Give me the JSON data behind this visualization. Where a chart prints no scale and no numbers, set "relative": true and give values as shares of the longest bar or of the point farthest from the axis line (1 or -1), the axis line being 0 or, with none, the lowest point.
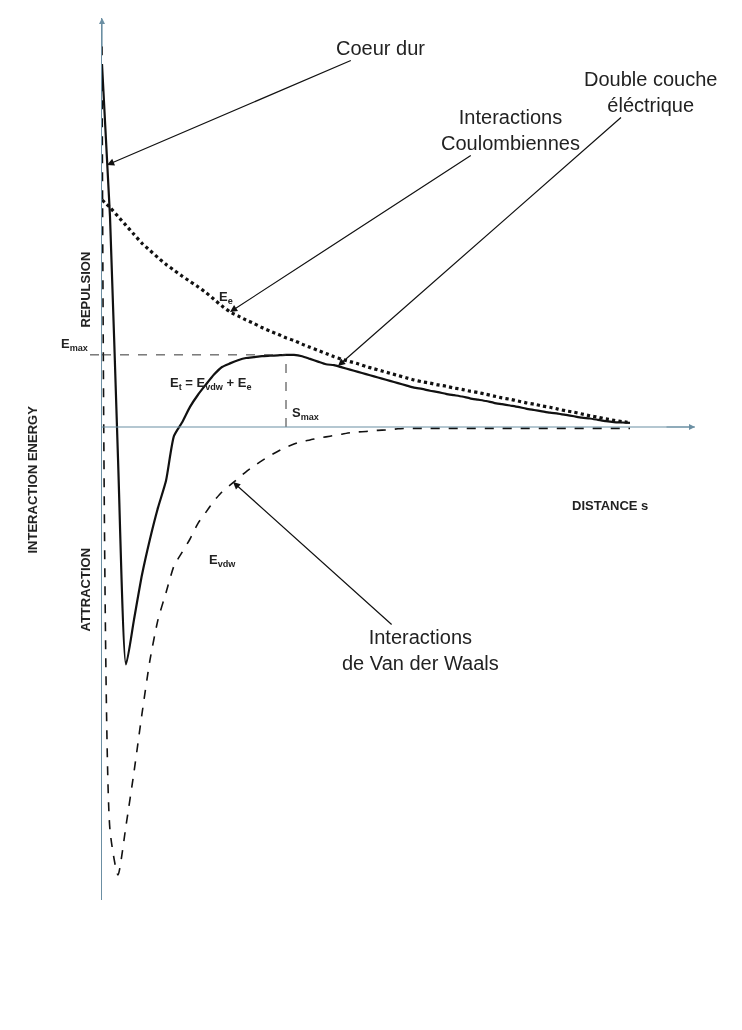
{
  "chart_data": {
    "type": "line",
    "relative": true,
    "tick_labels": false,
    "xlabel": "DISTANCE s",
    "ylabel": "INTERACTION ENERGY",
    "categories": [
      null,
      null,
      null,
      null,
      null,
      null,
      null,
      null,
      null,
      null,
      null,
      null,
      null,
      null,
      null,
      null,
      null,
      null,
      null,
      null,
      null,
      null,
      null,
      null,
      null,
      null,
      null,
      null,
      null,
      null,
      null,
      null,
      null,
      null,
      null,
      null,
      null,
      null,
      null,
      null,
      null,
      null,
      null,
      null,
      null,
      null,
      null,
      null,
      null,
      null,
      null,
      null,
      null,
      null,
      null,
      null,
      null,
      null,
      null,
      null,
      null,
      null,
      null,
      null,
      null,
      null,
      null
    ],
    "series": [
      {
        "name": "E$_{t}$ = E$_{vdw}$ + E$_{e}$",
        "color": "#111111",
        "line_style": "solid",
        "values": [
          0.81,
          0.47,
          -0.07,
          -0.53,
          -0.43,
          -0.33,
          -0.25,
          -0.18,
          -0.12,
          -0.02,
          0.01,
          0.045,
          0.072,
          0.095,
          0.117,
          0.134,
          0.142,
          0.149,
          0.154,
          0.156,
          0.158,
          0.159,
          0.16,
          0.161,
          0.161,
          0.158,
          0.152,
          0.146,
          0.14,
          0.138,
          0.133,
          0.128,
          0.123,
          0.118,
          0.113,
          0.108,
          0.103,
          0.098,
          0.093,
          0.088,
          0.085,
          0.081,
          0.078,
          0.074,
          0.071,
          0.068,
          0.064,
          0.061,
          0.058,
          0.054,
          0.051,
          0.048,
          0.045,
          0.041,
          0.038,
          0.035,
          0.032,
          0.03,
          0.027,
          0.024,
          0.021,
          0.019,
          0.016,
          0.013,
          0.011,
          0.01,
          0.009
        ]
      },
      {
        "name": "E$_{e}$",
        "color": "#111111",
        "line_style": "dotted",
        "values": [
          0.507,
          0.49,
          0.47,
          0.45,
          0.43,
          0.41,
          0.394,
          0.378,
          0.363,
          0.35,
          0.337,
          0.325,
          0.313,
          0.3,
          0.285,
          0.27,
          0.257,
          0.248,
          0.239,
          0.231,
          0.222,
          0.214,
          0.207,
          0.199,
          0.193,
          0.185,
          0.178,
          0.171,
          0.164,
          0.157,
          0.151,
          0.146,
          0.141,
          0.135,
          0.13,
          0.125,
          0.12,
          0.115,
          0.11,
          0.105,
          0.101,
          0.098,
          0.094,
          0.091,
          0.087,
          0.084,
          0.08,
          0.077,
          0.073,
          0.069,
          0.065,
          0.062,
          0.058,
          0.054,
          0.051,
          0.047,
          0.044,
          0.04,
          0.036,
          0.033,
          0.029,
          0.025,
          0.022,
          0.018,
          0.015,
          0.012,
          0.01
        ]
      },
      {
        "name": "E$_{vdw}$",
        "color": "#111111",
        "line_style": "dashed",
        "values": [
          0.85,
          -0.9,
          -1.0,
          -0.89,
          -0.77,
          -0.64,
          -0.52,
          -0.43,
          -0.37,
          -0.31,
          -0.28,
          -0.25,
          -0.215,
          -0.19,
          -0.165,
          -0.145,
          -0.13,
          -0.115,
          -0.1,
          -0.087,
          -0.075,
          -0.064,
          -0.054,
          -0.045,
          -0.038,
          -0.032,
          -0.029,
          -0.025,
          -0.022,
          -0.019,
          -0.016,
          -0.013,
          -0.011,
          -0.01,
          -0.008,
          -0.007,
          -0.006,
          -0.004,
          -0.003,
          -0.003,
          -0.003,
          -0.003,
          -0.003,
          -0.003,
          -0.003,
          -0.003,
          -0.003,
          -0.003,
          -0.003,
          -0.003,
          -0.003,
          -0.003,
          -0.003,
          -0.003,
          -0.003,
          -0.003,
          -0.003,
          -0.003,
          -0.003,
          -0.003,
          -0.003,
          -0.003,
          -0.003,
          -0.003,
          -0.003,
          -0.003,
          -0.003
        ]
      }
    ],
    "ref_lines": [
      {
        "axis": "y",
        "value": 0.161,
        "label": "E$_{max}$",
        "line_style": "dashed"
      },
      {
        "axis": "y",
        "value": 0,
        "color": "#6b8fa3",
        "line_style": "solid"
      }
    ],
    "annotations": [
      "REPULSION",
      "ATTRACTION",
      "Coeur dur",
      "Interactions\nCoulombiennes",
      "Double couche\néléctrique",
      "Interactions\nde Van der Waals",
      "S$_{max}$"
    ]
  }
}
